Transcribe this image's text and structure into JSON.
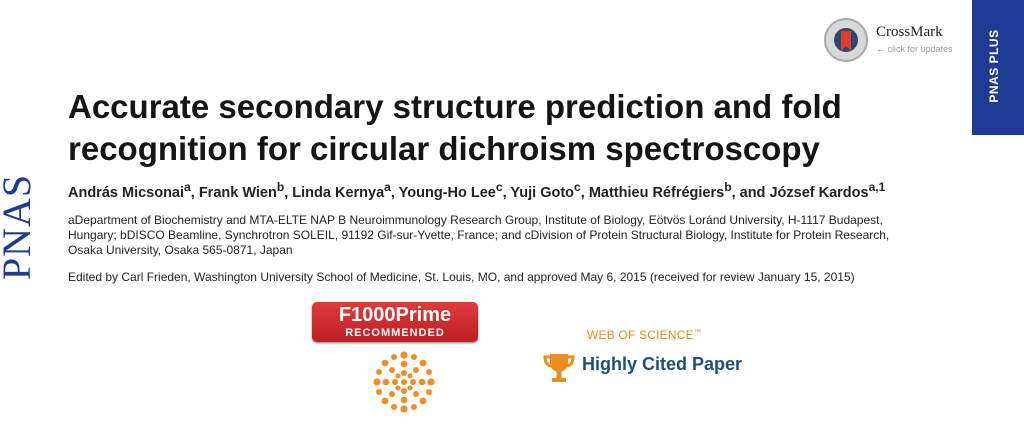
{
  "sidebar": {
    "logo": "PNAS",
    "badge": "PNAS PLUS"
  },
  "crossmark": {
    "title": "CrossMark",
    "subtitle": "click for updates"
  },
  "article": {
    "title_line1": "Accurate secondary structure prediction and fold",
    "title_line2": "recognition for circular dichroism spectroscopy",
    "authors": [
      {
        "name": "András Micsonai",
        "sup": "a"
      },
      {
        "name": "Frank Wien",
        "sup": "b"
      },
      {
        "name": "Linda Kernya",
        "sup": "a"
      },
      {
        "name": "Young-Ho Lee",
        "sup": "c"
      },
      {
        "name": "Yuji Goto",
        "sup": "c"
      },
      {
        "name": "Matthieu Réfrégiers",
        "sup": "b"
      },
      {
        "name": "József Kardos",
        "sup": "a,1"
      }
    ],
    "affiliation_lines": [
      "aDepartment of Biochemistry and MTA-ELTE NAP B Neuroimmunology Research Group, Institute of Biology, Eötvös Loránd University, H-1117 Budapest,",
      "Hungary; bDISCO Beamline, Synchrotron SOLEIL, 91192 Gif-sur-Yvette, France; and cDivision of Protein Structural Biology, Institute for Protein Research,",
      "Osaka University, Osaka 565-0871, Japan"
    ],
    "edited": "Edited by Carl Frieden, Washington University School of Medicine, St. Louis, MO, and approved May 6, 2015 (received for review January 15, 2015)"
  },
  "badges": {
    "f1000_top": "F1000Prime",
    "f1000_bottom": "RECOMMENDED",
    "wos": "WEB OF SCIENCE",
    "wos_tm": "™",
    "highly_cited": "Highly Cited Paper"
  },
  "colors": {
    "pnas_blue": "#1f3a93",
    "f1000_red": "#d62f31",
    "wos_orange": "#e08b24",
    "highly_cited_blue": "#1e4f7c"
  }
}
